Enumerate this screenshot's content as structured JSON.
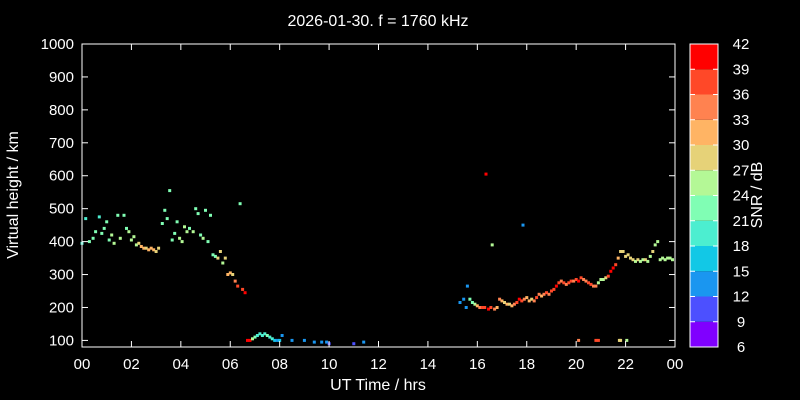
{
  "chart_data": {
    "type": "scatter",
    "title": "2026-01-30. f = 1760 kHz",
    "xlabel": "UT Time / hrs",
    "ylabel": "Virtual height / km",
    "xlim": [
      0,
      24
    ],
    "ylim": [
      80,
      1000
    ],
    "x_ticks": [
      "00",
      "02",
      "04",
      "06",
      "08",
      "10",
      "12",
      "14",
      "16",
      "18",
      "20",
      "22",
      "00"
    ],
    "y_ticks": [
      "100",
      "200",
      "300",
      "400",
      "500",
      "600",
      "700",
      "800",
      "900",
      "1000"
    ],
    "colorbar": {
      "label": "SNR / dB",
      "range": [
        6,
        42
      ],
      "ticks": [
        "6",
        "9",
        "12",
        "15",
        "18",
        "21",
        "24",
        "27",
        "30",
        "33",
        "36",
        "39",
        "42"
      ],
      "colors": [
        "#8000ff",
        "#4c50ff",
        "#1a96f0",
        "#12c8e6",
        "#4ceed0",
        "#80feb4",
        "#b4f896",
        "#e6d278",
        "#ffb464",
        "#ff8250",
        "#ff4828",
        "#ff0000"
      ]
    },
    "series": [
      {
        "x": [
          0.0,
          0.15,
          0.3,
          0.45,
          0.55,
          0.7,
          0.8,
          0.9,
          1.0,
          1.1,
          1.2,
          1.3,
          1.45,
          1.55,
          1.7,
          1.8,
          1.9,
          2.0,
          2.1,
          2.2,
          2.3,
          2.4,
          2.5,
          2.6,
          2.7,
          2.8,
          2.9,
          3.0,
          3.1,
          3.25,
          3.35,
          3.45,
          3.55,
          3.65,
          3.75,
          3.85,
          3.95,
          4.05,
          4.15,
          4.25,
          4.35,
          4.5,
          4.6,
          4.7,
          4.8,
          4.9,
          5.0,
          5.1,
          5.2,
          5.3,
          5.4,
          5.5,
          5.6,
          5.7,
          5.8,
          5.9,
          6.0,
          6.1,
          6.2,
          6.3,
          6.4,
          6.5,
          6.6
        ],
        "y": [
          395,
          470,
          400,
          410,
          430,
          475,
          425,
          440,
          460,
          405,
          420,
          395,
          480,
          410,
          480,
          440,
          430,
          405,
          415,
          390,
          395,
          385,
          380,
          380,
          375,
          380,
          375,
          370,
          380,
          455,
          495,
          470,
          555,
          405,
          425,
          460,
          410,
          400,
          445,
          430,
          440,
          430,
          500,
          485,
          420,
          410,
          495,
          400,
          480,
          360,
          355,
          350,
          370,
          335,
          350,
          300,
          305,
          300,
          280,
          265,
          515,
          255,
          245
        ],
        "snr": [
          18,
          18,
          21,
          21,
          21,
          18,
          21,
          21,
          21,
          21,
          24,
          24,
          21,
          24,
          21,
          21,
          24,
          24,
          24,
          24,
          27,
          30,
          30,
          27,
          30,
          30,
          30,
          27,
          27,
          21,
          21,
          21,
          21,
          21,
          21,
          21,
          24,
          24,
          24,
          24,
          21,
          24,
          21,
          21,
          21,
          24,
          21,
          21,
          21,
          21,
          21,
          27,
          27,
          24,
          27,
          30,
          30,
          27,
          33,
          36,
          21,
          36,
          39
        ]
      },
      {
        "x": [
          6.7,
          6.8,
          6.9,
          7.0,
          7.1,
          7.2,
          7.3,
          7.4,
          7.5,
          7.6,
          7.7,
          7.8,
          7.9,
          8.0,
          8.1,
          8.5,
          9.0,
          9.4,
          9.7,
          9.9,
          10.0,
          11.0,
          11.4
        ],
        "y": [
          100,
          100,
          105,
          110,
          115,
          120,
          115,
          120,
          115,
          110,
          105,
          100,
          100,
          100,
          115,
          100,
          100,
          95,
          95,
          95,
          90,
          90,
          95
        ],
        "snr": [
          39,
          42,
          24,
          21,
          18,
          18,
          18,
          18,
          21,
          18,
          18,
          15,
          12,
          15,
          12,
          12,
          12,
          12,
          12,
          12,
          9,
          9,
          12
        ]
      },
      {
        "x": [
          15.3,
          15.45,
          15.55,
          15.6,
          15.7,
          15.8,
          15.9,
          16.0,
          16.1,
          16.2,
          16.3,
          16.45,
          16.55,
          16.7,
          16.8,
          16.9,
          17.0,
          17.1,
          17.2,
          17.3,
          17.4,
          17.5,
          17.6,
          17.7,
          17.8,
          17.9,
          18.0,
          18.1,
          18.2,
          18.3,
          18.4,
          18.5,
          18.6,
          18.7,
          18.8,
          18.9,
          19.0,
          19.1,
          19.2,
          19.3,
          19.4,
          19.5,
          19.6,
          19.7,
          19.8,
          19.9,
          20.0,
          20.1,
          20.2,
          20.3,
          20.4,
          20.5,
          20.6,
          20.7,
          20.8,
          20.9,
          21.0,
          21.1,
          21.2,
          21.3,
          21.4,
          21.5,
          21.6,
          21.7,
          21.8,
          21.9,
          22.0,
          22.1,
          22.2,
          22.3,
          22.4,
          22.5,
          22.6,
          22.7,
          22.8,
          22.9,
          23.0,
          23.1,
          23.2,
          23.3,
          23.4,
          23.5,
          23.6,
          23.7,
          23.8,
          23.9
        ],
        "y": [
          215,
          225,
          200,
          265,
          225,
          215,
          210,
          205,
          200,
          200,
          200,
          195,
          200,
          195,
          200,
          225,
          220,
          215,
          210,
          210,
          205,
          210,
          215,
          225,
          220,
          225,
          230,
          220,
          225,
          220,
          230,
          240,
          235,
          240,
          245,
          240,
          250,
          255,
          265,
          275,
          280,
          275,
          270,
          275,
          280,
          280,
          285,
          280,
          290,
          285,
          280,
          275,
          270,
          265,
          265,
          275,
          285,
          285,
          290,
          295,
          310,
          320,
          330,
          350,
          370,
          370,
          355,
          360,
          350,
          345,
          340,
          345,
          340,
          345,
          345,
          340,
          355,
          370,
          390,
          400,
          345,
          350,
          345,
          350,
          350,
          345
        ],
        "snr": [
          12,
          12,
          12,
          12,
          21,
          21,
          24,
          30,
          33,
          36,
          36,
          39,
          36,
          33,
          30,
          33,
          30,
          27,
          30,
          27,
          30,
          33,
          36,
          39,
          36,
          33,
          30,
          30,
          27,
          33,
          36,
          33,
          30,
          33,
          36,
          33,
          36,
          36,
          39,
          36,
          33,
          36,
          33,
          36,
          36,
          33,
          36,
          39,
          36,
          33,
          33,
          36,
          36,
          33,
          33,
          24,
          24,
          24,
          27,
          36,
          39,
          39,
          36,
          30,
          27,
          27,
          27,
          27,
          27,
          27,
          24,
          27,
          24,
          24,
          27,
          24,
          24,
          27,
          24,
          24,
          24,
          24,
          24,
          24,
          24,
          24
        ]
      },
      {
        "x": [
          16.35,
          16.6,
          17.85,
          20.1,
          20.8,
          20.9,
          21.75,
          21.8,
          22.05
        ],
        "y": [
          605,
          390,
          450,
          100,
          100,
          100,
          100,
          100,
          100
        ],
        "snr": [
          39,
          24,
          12,
          33,
          36,
          36,
          27,
          27,
          24
        ]
      }
    ]
  }
}
